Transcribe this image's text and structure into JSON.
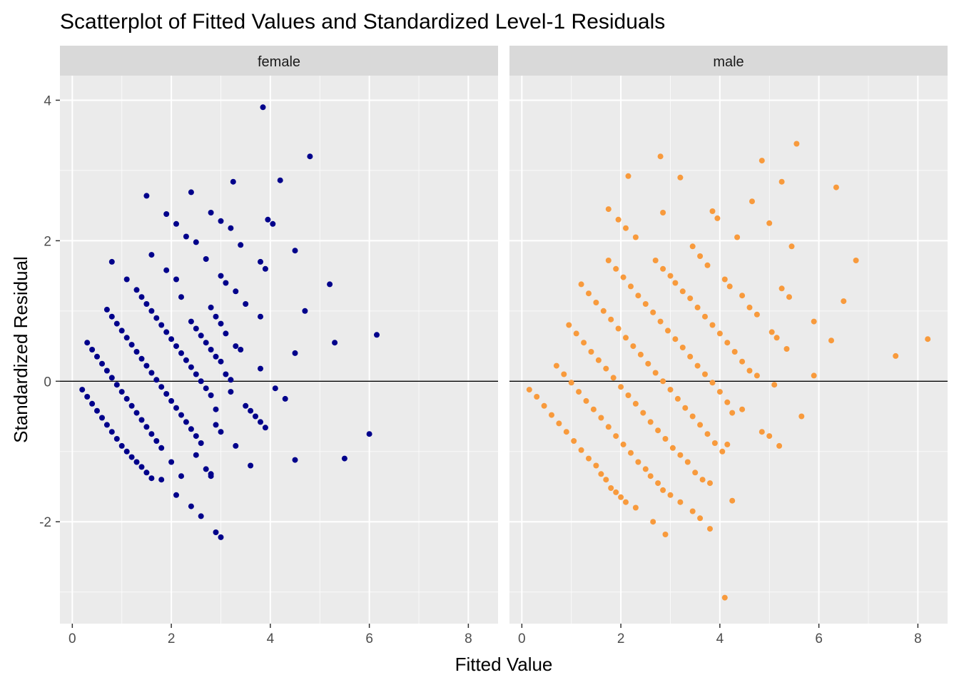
{
  "chart_data": {
    "type": "scatter",
    "title": "Scatterplot of Fitted Values and Standardized Level-1 Residuals",
    "xlabel": "Fitted Value",
    "ylabel": "Standardized Residual",
    "xlim": [
      -0.25,
      8.6
    ],
    "ylim": [
      -3.45,
      4.35
    ],
    "x_ticks": [
      0,
      2,
      4,
      6,
      8
    ],
    "y_ticks": [
      -2,
      0,
      2,
      4
    ],
    "reference_line_y": 0,
    "grid": true,
    "legend": "none",
    "facets": [
      {
        "name": "female",
        "color": "#00008B",
        "points": [
          [
            0.2,
            -0.12
          ],
          [
            0.3,
            -0.22
          ],
          [
            0.4,
            -0.32
          ],
          [
            0.5,
            -0.42
          ],
          [
            0.6,
            -0.52
          ],
          [
            0.7,
            -0.62
          ],
          [
            0.8,
            -0.72
          ],
          [
            0.9,
            -0.82
          ],
          [
            1.0,
            -0.92
          ],
          [
            1.1,
            -1.0
          ],
          [
            1.2,
            -1.08
          ],
          [
            1.3,
            -1.15
          ],
          [
            1.4,
            -1.22
          ],
          [
            1.5,
            -1.3
          ],
          [
            1.6,
            -1.38
          ],
          [
            1.8,
            -1.4
          ],
          [
            2.1,
            -1.62
          ],
          [
            0.3,
            0.55
          ],
          [
            0.4,
            0.45
          ],
          [
            0.5,
            0.35
          ],
          [
            0.6,
            0.25
          ],
          [
            0.7,
            0.15
          ],
          [
            0.8,
            0.05
          ],
          [
            0.9,
            -0.05
          ],
          [
            1.0,
            -0.15
          ],
          [
            1.1,
            -0.25
          ],
          [
            1.2,
            -0.35
          ],
          [
            1.3,
            -0.45
          ],
          [
            1.4,
            -0.55
          ],
          [
            1.5,
            -0.65
          ],
          [
            1.6,
            -0.75
          ],
          [
            1.7,
            -0.85
          ],
          [
            1.8,
            -0.95
          ],
          [
            2.0,
            -1.15
          ],
          [
            2.2,
            -1.35
          ],
          [
            2.4,
            -1.78
          ],
          [
            2.6,
            -1.92
          ],
          [
            0.7,
            1.02
          ],
          [
            0.8,
            0.92
          ],
          [
            0.9,
            0.82
          ],
          [
            1.0,
            0.72
          ],
          [
            1.1,
            0.62
          ],
          [
            1.2,
            0.52
          ],
          [
            1.3,
            0.42
          ],
          [
            1.4,
            0.32
          ],
          [
            1.5,
            0.22
          ],
          [
            1.6,
            0.12
          ],
          [
            1.7,
            0.02
          ],
          [
            1.8,
            -0.08
          ],
          [
            1.9,
            -0.18
          ],
          [
            2.0,
            -0.28
          ],
          [
            2.1,
            -0.38
          ],
          [
            2.2,
            -0.48
          ],
          [
            2.3,
            -0.58
          ],
          [
            2.4,
            -0.68
          ],
          [
            2.5,
            -0.78
          ],
          [
            2.6,
            -0.88
          ],
          [
            2.8,
            -1.32
          ],
          [
            2.9,
            -2.15
          ],
          [
            3.0,
            -2.22
          ],
          [
            0.8,
            1.7
          ],
          [
            1.1,
            1.45
          ],
          [
            1.3,
            1.3
          ],
          [
            1.4,
            1.2
          ],
          [
            1.5,
            1.1
          ],
          [
            1.6,
            1.0
          ],
          [
            1.7,
            0.9
          ],
          [
            1.8,
            0.8
          ],
          [
            1.9,
            0.7
          ],
          [
            2.0,
            0.6
          ],
          [
            2.1,
            0.5
          ],
          [
            2.2,
            0.4
          ],
          [
            2.3,
            0.3
          ],
          [
            2.4,
            0.2
          ],
          [
            2.5,
            0.1
          ],
          [
            2.6,
            0.0
          ],
          [
            2.7,
            -0.1
          ],
          [
            2.8,
            -0.2
          ],
          [
            2.9,
            -0.4
          ],
          [
            2.5,
            -1.05
          ],
          [
            2.7,
            -1.25
          ],
          [
            2.8,
            -1.35
          ],
          [
            3.0,
            -0.72
          ],
          [
            2.9,
            -0.62
          ],
          [
            1.6,
            1.8
          ],
          [
            1.9,
            1.58
          ],
          [
            2.1,
            1.45
          ],
          [
            2.2,
            1.2
          ],
          [
            2.4,
            0.85
          ],
          [
            2.5,
            0.75
          ],
          [
            2.6,
            0.65
          ],
          [
            2.7,
            0.55
          ],
          [
            2.8,
            0.45
          ],
          [
            2.9,
            0.35
          ],
          [
            3.0,
            0.28
          ],
          [
            3.1,
            0.1
          ],
          [
            3.2,
            -0.15
          ],
          [
            1.5,
            2.64
          ],
          [
            1.9,
            2.38
          ],
          [
            2.1,
            2.24
          ],
          [
            2.3,
            2.06
          ],
          [
            2.5,
            1.98
          ],
          [
            2.7,
            1.74
          ],
          [
            2.8,
            1.05
          ],
          [
            2.9,
            0.92
          ],
          [
            3.0,
            0.82
          ],
          [
            3.1,
            0.68
          ],
          [
            3.3,
            0.5
          ],
          [
            3.4,
            0.45
          ],
          [
            3.3,
            -0.92
          ],
          [
            3.5,
            -0.35
          ],
          [
            3.6,
            -0.42
          ],
          [
            3.7,
            -0.5
          ],
          [
            3.8,
            -0.58
          ],
          [
            3.9,
            -0.66
          ],
          [
            3.6,
            -1.2
          ],
          [
            2.4,
            2.69
          ],
          [
            2.8,
            2.4
          ],
          [
            3.0,
            2.28
          ],
          [
            3.2,
            2.18
          ],
          [
            3.4,
            1.94
          ],
          [
            3.0,
            1.5
          ],
          [
            3.1,
            1.4
          ],
          [
            3.3,
            1.28
          ],
          [
            3.5,
            1.1
          ],
          [
            3.2,
            0.02
          ],
          [
            3.8,
            0.18
          ],
          [
            3.25,
            2.84
          ],
          [
            3.8,
            1.7
          ],
          [
            3.9,
            1.6
          ],
          [
            3.8,
            0.92
          ],
          [
            3.85,
            3.9
          ],
          [
            3.95,
            2.3
          ],
          [
            4.05,
            2.24
          ],
          [
            4.2,
            2.86
          ],
          [
            4.5,
            1.86
          ],
          [
            4.7,
            1.0
          ],
          [
            4.8,
            3.2
          ],
          [
            4.1,
            -0.1
          ],
          [
            4.3,
            -0.25
          ],
          [
            4.5,
            0.4
          ],
          [
            4.5,
            -1.12
          ],
          [
            5.2,
            1.38
          ],
          [
            5.3,
            0.55
          ],
          [
            5.5,
            -1.1
          ],
          [
            6.0,
            -0.75
          ],
          [
            6.15,
            0.66
          ]
        ]
      },
      {
        "name": "male",
        "color": "#F89A3C",
        "points": [
          [
            0.15,
            -0.12
          ],
          [
            0.3,
            -0.22
          ],
          [
            0.45,
            -0.35
          ],
          [
            0.6,
            -0.48
          ],
          [
            0.75,
            -0.6
          ],
          [
            0.9,
            -0.72
          ],
          [
            1.05,
            -0.85
          ],
          [
            1.2,
            -0.98
          ],
          [
            1.35,
            -1.1
          ],
          [
            1.5,
            -1.2
          ],
          [
            1.6,
            -1.32
          ],
          [
            1.7,
            -1.4
          ],
          [
            1.8,
            -1.52
          ],
          [
            1.9,
            -1.58
          ],
          [
            2.0,
            -1.65
          ],
          [
            2.1,
            -1.72
          ],
          [
            2.3,
            -1.8
          ],
          [
            0.7,
            0.22
          ],
          [
            0.85,
            0.1
          ],
          [
            1.0,
            -0.02
          ],
          [
            1.15,
            -0.15
          ],
          [
            1.3,
            -0.28
          ],
          [
            1.45,
            -0.4
          ],
          [
            1.6,
            -0.52
          ],
          [
            1.75,
            -0.65
          ],
          [
            1.9,
            -0.78
          ],
          [
            2.05,
            -0.9
          ],
          [
            2.2,
            -1.02
          ],
          [
            2.35,
            -1.15
          ],
          [
            2.5,
            -1.25
          ],
          [
            2.6,
            -1.35
          ],
          [
            2.75,
            -1.45
          ],
          [
            2.85,
            -1.55
          ],
          [
            3.0,
            -1.62
          ],
          [
            3.2,
            -1.72
          ],
          [
            2.65,
            -2.0
          ],
          [
            2.9,
            -2.18
          ],
          [
            0.95,
            0.8
          ],
          [
            1.1,
            0.68
          ],
          [
            1.25,
            0.55
          ],
          [
            1.4,
            0.42
          ],
          [
            1.55,
            0.3
          ],
          [
            1.7,
            0.18
          ],
          [
            1.85,
            0.05
          ],
          [
            2.0,
            -0.08
          ],
          [
            2.15,
            -0.2
          ],
          [
            2.3,
            -0.32
          ],
          [
            2.45,
            -0.45
          ],
          [
            2.6,
            -0.58
          ],
          [
            2.75,
            -0.7
          ],
          [
            2.9,
            -0.82
          ],
          [
            3.05,
            -0.95
          ],
          [
            3.2,
            -1.05
          ],
          [
            3.35,
            -1.15
          ],
          [
            3.5,
            -1.3
          ],
          [
            3.65,
            -1.4
          ],
          [
            3.8,
            -1.45
          ],
          [
            3.45,
            -1.85
          ],
          [
            3.6,
            -1.95
          ],
          [
            3.8,
            -2.1
          ],
          [
            1.2,
            1.38
          ],
          [
            1.35,
            1.25
          ],
          [
            1.5,
            1.12
          ],
          [
            1.65,
            1.0
          ],
          [
            1.8,
            0.88
          ],
          [
            1.95,
            0.75
          ],
          [
            2.1,
            0.62
          ],
          [
            2.25,
            0.5
          ],
          [
            2.4,
            0.38
          ],
          [
            2.55,
            0.25
          ],
          [
            2.7,
            0.12
          ],
          [
            2.85,
            0.0
          ],
          [
            3.0,
            -0.12
          ],
          [
            3.15,
            -0.25
          ],
          [
            3.3,
            -0.38
          ],
          [
            3.45,
            -0.5
          ],
          [
            3.6,
            -0.62
          ],
          [
            3.75,
            -0.75
          ],
          [
            3.9,
            -0.88
          ],
          [
            4.05,
            -1.0
          ],
          [
            1.75,
            1.72
          ],
          [
            1.9,
            1.6
          ],
          [
            2.05,
            1.48
          ],
          [
            2.2,
            1.35
          ],
          [
            2.35,
            1.22
          ],
          [
            2.5,
            1.1
          ],
          [
            2.65,
            0.98
          ],
          [
            2.8,
            0.85
          ],
          [
            2.95,
            0.72
          ],
          [
            3.1,
            0.6
          ],
          [
            3.25,
            0.48
          ],
          [
            3.4,
            0.35
          ],
          [
            3.55,
            0.22
          ],
          [
            3.7,
            0.1
          ],
          [
            3.85,
            -0.02
          ],
          [
            4.0,
            -0.15
          ],
          [
            4.15,
            -0.3
          ],
          [
            4.25,
            -0.45
          ],
          [
            4.15,
            -0.9
          ],
          [
            4.25,
            -1.7
          ],
          [
            1.75,
            2.45
          ],
          [
            1.95,
            2.3
          ],
          [
            2.1,
            2.18
          ],
          [
            2.3,
            2.05
          ],
          [
            2.7,
            1.72
          ],
          [
            2.85,
            1.6
          ],
          [
            3.0,
            1.5
          ],
          [
            3.1,
            1.4
          ],
          [
            3.25,
            1.28
          ],
          [
            3.4,
            1.18
          ],
          [
            3.55,
            1.05
          ],
          [
            3.7,
            0.92
          ],
          [
            3.85,
            0.8
          ],
          [
            4.0,
            0.68
          ],
          [
            4.15,
            0.55
          ],
          [
            4.3,
            0.42
          ],
          [
            4.45,
            0.28
          ],
          [
            4.6,
            0.15
          ],
          [
            4.75,
            0.08
          ],
          [
            4.45,
            -0.4
          ],
          [
            4.85,
            -0.72
          ],
          [
            5.0,
            -0.78
          ],
          [
            5.2,
            -0.92
          ],
          [
            2.15,
            2.92
          ],
          [
            2.8,
            3.2
          ],
          [
            2.85,
            2.4
          ],
          [
            3.2,
            2.9
          ],
          [
            3.45,
            1.92
          ],
          [
            3.6,
            1.78
          ],
          [
            3.75,
            1.65
          ],
          [
            3.85,
            2.42
          ],
          [
            3.95,
            2.32
          ],
          [
            4.1,
            1.45
          ],
          [
            4.2,
            1.35
          ],
          [
            4.35,
            2.05
          ],
          [
            4.45,
            1.22
          ],
          [
            4.6,
            1.05
          ],
          [
            4.75,
            0.95
          ],
          [
            4.65,
            2.56
          ],
          [
            4.85,
            3.14
          ],
          [
            5.0,
            2.25
          ],
          [
            5.05,
            0.7
          ],
          [
            5.15,
            0.62
          ],
          [
            5.1,
            -0.05
          ],
          [
            5.25,
            2.84
          ],
          [
            5.25,
            1.32
          ],
          [
            5.4,
            1.2
          ],
          [
            5.35,
            0.46
          ],
          [
            5.45,
            1.92
          ],
          [
            5.55,
            3.38
          ],
          [
            5.65,
            -0.5
          ],
          [
            5.9,
            0.85
          ],
          [
            5.9,
            0.08
          ],
          [
            6.25,
            0.58
          ],
          [
            6.35,
            2.76
          ],
          [
            6.5,
            1.14
          ],
          [
            6.75,
            1.72
          ],
          [
            7.55,
            0.36
          ],
          [
            8.2,
            0.6
          ],
          [
            4.1,
            -3.08
          ]
        ]
      }
    ]
  }
}
